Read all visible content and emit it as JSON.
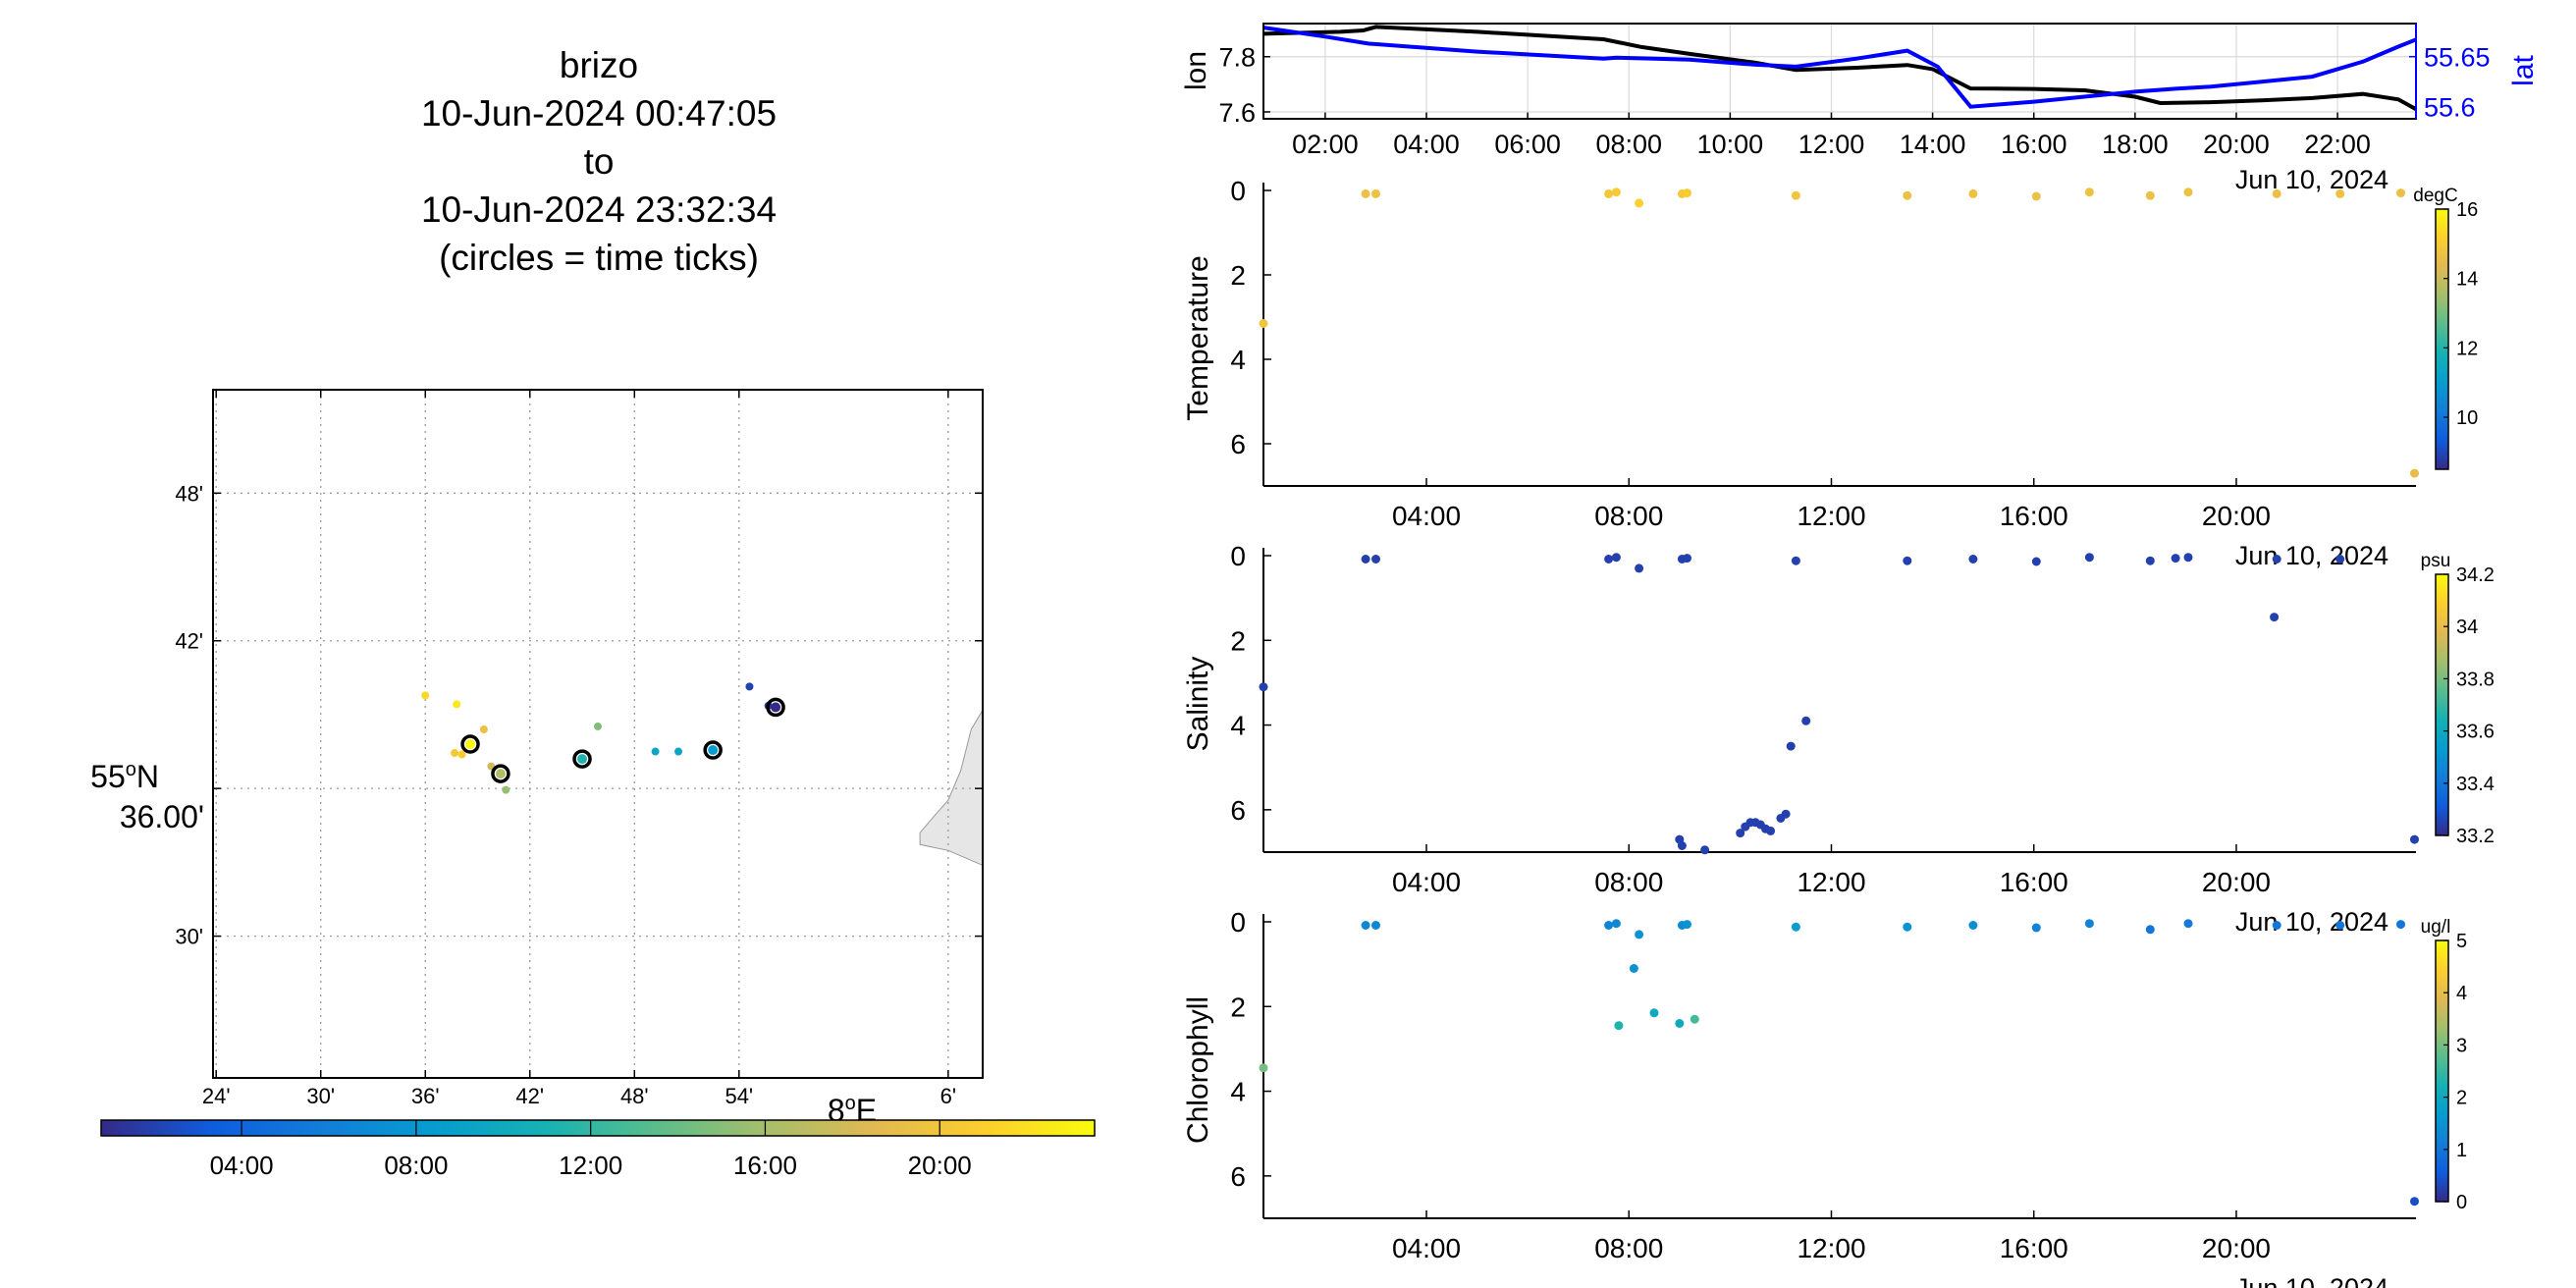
{
  "title": {
    "platform": "brizo",
    "start": "10-Jun-2024 00:47:05",
    "to": "to",
    "end": "10-Jun-2024 23:32:34",
    "note": "(circles = time ticks)"
  },
  "chart_data": [
    {
      "type": "scatter",
      "name": "track-map",
      "lon_ticks": [
        "24'",
        "30'",
        "36'",
        "42'",
        "48'",
        "54'",
        "6'"
      ],
      "lon_tick_values": [
        7.4,
        7.5,
        7.6,
        7.7,
        7.8,
        7.9,
        8.1
      ],
      "lon_degree_label": "8",
      "lon_degree_suffix": "E",
      "lat_ticks": [
        "48'",
        "42'",
        "30'"
      ],
      "lat_tick_values": [
        55.8,
        55.7,
        55.5
      ],
      "lat_degree_label": "55",
      "lat_degree_suffix": "N",
      "lat_minutes_label": "36.00'",
      "xlim": [
        7.397,
        8.133
      ],
      "ylim": [
        55.404,
        55.87
      ],
      "grid": true,
      "points": [
        {
          "lon": 7.6,
          "lat": 55.663,
          "t": 21.5,
          "tick": false
        },
        {
          "lon": 7.63,
          "lat": 55.657,
          "t": 22.5,
          "tick": false
        },
        {
          "lon": 7.643,
          "lat": 55.63,
          "t": 23.2,
          "tick": true
        },
        {
          "lon": 7.656,
          "lat": 55.64,
          "t": 19.5,
          "tick": false
        },
        {
          "lon": 7.628,
          "lat": 55.624,
          "t": 20.3,
          "tick": false
        },
        {
          "lon": 7.635,
          "lat": 55.623,
          "t": 20.8,
          "tick": false
        },
        {
          "lon": 7.663,
          "lat": 55.615,
          "t": 17.8,
          "tick": false
        },
        {
          "lon": 7.672,
          "lat": 55.61,
          "t": 16.5,
          "tick": true
        },
        {
          "lon": 7.677,
          "lat": 55.599,
          "t": 15.5,
          "tick": false
        },
        {
          "lon": 7.75,
          "lat": 55.62,
          "t": 11.3,
          "tick": true
        },
        {
          "lon": 7.765,
          "lat": 55.642,
          "t": 14.8,
          "tick": false
        },
        {
          "lon": 7.82,
          "lat": 55.625,
          "t": 9.5,
          "tick": false
        },
        {
          "lon": 7.842,
          "lat": 55.625,
          "t": 9.2,
          "tick": false
        },
        {
          "lon": 7.875,
          "lat": 55.626,
          "t": 8.5,
          "tick": true
        },
        {
          "lon": 7.91,
          "lat": 55.669,
          "t": 2.0,
          "tick": false
        },
        {
          "lon": 7.928,
          "lat": 55.656,
          "t": 1.5,
          "tick": false
        },
        {
          "lon": 7.935,
          "lat": 55.655,
          "t": 0.8,
          "tick": true
        }
      ],
      "land_polygon": [
        [
          8.133,
          55.653
        ],
        [
          8.122,
          55.64
        ],
        [
          8.112,
          55.612
        ],
        [
          8.1,
          55.592
        ],
        [
          8.085,
          55.58
        ],
        [
          8.073,
          55.57
        ],
        [
          8.073,
          55.562
        ],
        [
          8.1,
          55.558
        ],
        [
          8.133,
          55.548
        ]
      ]
    },
    {
      "type": "line",
      "name": "lon-lat-timeseries",
      "ylabel_left": "lon",
      "ylabel_right": "lat",
      "xlim": [
        0.78,
        23.55
      ],
      "ylim_left": [
        7.575,
        7.92
      ],
      "ylim_right": [
        55.588,
        55.683
      ],
      "left_ticks": [
        7.6,
        7.8
      ],
      "right_ticks": [
        55.6,
        55.65
      ],
      "x_ticks": [
        "02:00",
        "04:00",
        "06:00",
        "08:00",
        "10:00",
        "12:00",
        "14:00",
        "16:00",
        "18:00",
        "20:00",
        "22:00"
      ],
      "x_tick_values": [
        2,
        4,
        6,
        8,
        10,
        12,
        14,
        16,
        18,
        20,
        22
      ],
      "date_label": "Jun 10, 2024",
      "grid": true,
      "series": [
        {
          "axis": "left",
          "color": "#000000",
          "x": [
            0.78,
            2.3,
            2.75,
            3.0,
            5.0,
            7.5,
            8.25,
            9.2,
            10.5,
            11.3,
            12.5,
            13.5,
            14.0,
            14.75,
            16.0,
            17.0,
            18.0,
            18.5,
            19.5,
            20.5,
            21.5,
            22.5,
            23.2,
            23.55
          ],
          "y": [
            7.883,
            7.89,
            7.895,
            7.908,
            7.89,
            7.863,
            7.835,
            7.81,
            7.778,
            7.752,
            7.76,
            7.77,
            7.755,
            7.685,
            7.683,
            7.678,
            7.655,
            7.632,
            7.635,
            7.642,
            7.65,
            7.665,
            7.645,
            7.61
          ]
        },
        {
          "axis": "right",
          "color": "#0000ff",
          "x": [
            0.78,
            2.0,
            2.85,
            5.0,
            7.5,
            7.75,
            8.5,
            9.2,
            10.5,
            11.3,
            12.5,
            13.5,
            14.1,
            14.75,
            16.0,
            17.0,
            18.0,
            18.8,
            19.5,
            20.5,
            21.5,
            22.5,
            23.2,
            23.55
          ],
          "y": [
            55.679,
            55.67,
            55.663,
            55.655,
            55.648,
            55.649,
            55.648,
            55.647,
            55.642,
            55.64,
            55.648,
            55.656,
            55.64,
            55.6,
            55.605,
            55.61,
            55.615,
            55.618,
            55.62,
            55.625,
            55.63,
            55.645,
            55.66,
            55.667
          ]
        }
      ]
    },
    {
      "type": "scatter",
      "name": "temperature-panel",
      "ylabel": "Temperature",
      "units": "degC",
      "xlim": [
        0.78,
        23.55
      ],
      "ylim": [
        0,
        7
      ],
      "y_ticks": [
        0,
        2,
        4,
        6
      ],
      "x_ticks": [
        "04:00",
        "08:00",
        "12:00",
        "16:00",
        "20:00"
      ],
      "x_tick_values": [
        4,
        8,
        12,
        16,
        20
      ],
      "date_label": "Jun 10, 2024",
      "cmin": 8.5,
      "cmax": 16,
      "cbar_ticks": [
        10,
        12,
        14,
        16
      ],
      "points": [
        {
          "t": 0.78,
          "depth": 3.15,
          "v": 14.8
        },
        {
          "t": 2.8,
          "depth": 0.08,
          "v": 14.6
        },
        {
          "t": 3.0,
          "depth": 0.08,
          "v": 14.7
        },
        {
          "t": 7.6,
          "depth": 0.08,
          "v": 14.9
        },
        {
          "t": 7.75,
          "depth": 0.04,
          "v": 15.0
        },
        {
          "t": 8.2,
          "depth": 0.3,
          "v": 15.2
        },
        {
          "t": 9.05,
          "depth": 0.08,
          "v": 15.0
        },
        {
          "t": 9.15,
          "depth": 0.06,
          "v": 15.1
        },
        {
          "t": 11.3,
          "depth": 0.12,
          "v": 14.8
        },
        {
          "t": 13.5,
          "depth": 0.12,
          "v": 14.6
        },
        {
          "t": 14.8,
          "depth": 0.08,
          "v": 14.7
        },
        {
          "t": 16.05,
          "depth": 0.14,
          "v": 14.6
        },
        {
          "t": 17.1,
          "depth": 0.04,
          "v": 14.7
        },
        {
          "t": 18.3,
          "depth": 0.12,
          "v": 14.6
        },
        {
          "t": 19.05,
          "depth": 0.04,
          "v": 14.7
        },
        {
          "t": 20.8,
          "depth": 0.08,
          "v": 14.6
        },
        {
          "t": 22.05,
          "depth": 0.08,
          "v": 14.7
        },
        {
          "t": 23.25,
          "depth": 0.06,
          "v": 14.6
        },
        {
          "t": 23.52,
          "depth": 6.7,
          "v": 14.5
        }
      ]
    },
    {
      "type": "scatter",
      "name": "salinity-panel",
      "ylabel": "Salinity",
      "units": "psu",
      "xlim": [
        0.78,
        23.55
      ],
      "ylim": [
        0,
        7
      ],
      "y_ticks": [
        0,
        2,
        4,
        6
      ],
      "x_ticks": [
        "04:00",
        "08:00",
        "12:00",
        "16:00",
        "20:00"
      ],
      "x_tick_values": [
        4,
        8,
        12,
        16,
        20
      ],
      "date_label": "Jun 10, 2024",
      "cmin": 33.2,
      "cmax": 34.2,
      "cbar_ticks": [
        33.2,
        33.4,
        33.6,
        33.8,
        34,
        34.2
      ],
      "points": [
        {
          "t": 0.78,
          "depth": 3.1,
          "v": 33.25
        },
        {
          "t": 2.8,
          "depth": 0.08,
          "v": 33.25
        },
        {
          "t": 3.0,
          "depth": 0.08,
          "v": 33.25
        },
        {
          "t": 7.6,
          "depth": 0.08,
          "v": 33.25
        },
        {
          "t": 7.75,
          "depth": 0.04,
          "v": 33.25
        },
        {
          "t": 8.2,
          "depth": 0.3,
          "v": 33.25
        },
        {
          "t": 9.05,
          "depth": 0.08,
          "v": 33.25
        },
        {
          "t": 9.15,
          "depth": 0.06,
          "v": 33.25
        },
        {
          "t": 11.3,
          "depth": 0.12,
          "v": 33.25
        },
        {
          "t": 13.5,
          "depth": 0.12,
          "v": 33.25
        },
        {
          "t": 14.8,
          "depth": 0.08,
          "v": 33.25
        },
        {
          "t": 16.05,
          "depth": 0.14,
          "v": 33.25
        },
        {
          "t": 17.1,
          "depth": 0.04,
          "v": 33.25
        },
        {
          "t": 18.3,
          "depth": 0.12,
          "v": 33.25
        },
        {
          "t": 18.8,
          "depth": 0.06,
          "v": 33.25
        },
        {
          "t": 19.05,
          "depth": 0.04,
          "v": 33.25
        },
        {
          "t": 20.8,
          "depth": 0.08,
          "v": 33.25
        },
        {
          "t": 22.05,
          "depth": 0.08,
          "v": 33.25
        },
        {
          "t": 20.75,
          "depth": 1.45,
          "v": 33.25
        },
        {
          "t": 9.0,
          "depth": 6.7,
          "v": 33.25
        },
        {
          "t": 9.05,
          "depth": 6.85,
          "v": 33.25
        },
        {
          "t": 9.5,
          "depth": 6.95,
          "v": 33.25
        },
        {
          "t": 10.2,
          "depth": 6.55,
          "v": 33.25
        },
        {
          "t": 10.3,
          "depth": 6.4,
          "v": 33.25
        },
        {
          "t": 10.4,
          "depth": 6.3,
          "v": 33.25
        },
        {
          "t": 10.5,
          "depth": 6.3,
          "v": 33.25
        },
        {
          "t": 10.6,
          "depth": 6.35,
          "v": 33.25
        },
        {
          "t": 10.7,
          "depth": 6.45,
          "v": 33.25
        },
        {
          "t": 10.8,
          "depth": 6.5,
          "v": 33.25
        },
        {
          "t": 11.0,
          "depth": 6.2,
          "v": 33.25
        },
        {
          "t": 11.1,
          "depth": 6.1,
          "v": 33.25
        },
        {
          "t": 11.2,
          "depth": 4.5,
          "v": 33.25
        },
        {
          "t": 11.5,
          "depth": 3.9,
          "v": 33.25
        },
        {
          "t": 23.52,
          "depth": 6.7,
          "v": 33.25
        }
      ]
    },
    {
      "type": "scatter",
      "name": "chlorophyll-panel",
      "ylabel": "Chlorophyll",
      "units": "ug/l",
      "xlim": [
        0.78,
        23.55
      ],
      "ylim": [
        0,
        7
      ],
      "y_ticks": [
        0,
        2,
        4,
        6
      ],
      "x_ticks": [
        "04:00",
        "08:00",
        "12:00",
        "16:00",
        "20:00"
      ],
      "x_tick_values": [
        4,
        8,
        12,
        16,
        20
      ],
      "date_label": "Jun 10, 2024",
      "cmin": 0,
      "cmax": 5,
      "cbar_ticks": [
        0,
        1,
        2,
        3,
        4,
        5
      ],
      "points": [
        {
          "t": 0.78,
          "depth": 3.45,
          "v": 3.0
        },
        {
          "t": 2.8,
          "depth": 0.08,
          "v": 1.3
        },
        {
          "t": 3.0,
          "depth": 0.08,
          "v": 1.3
        },
        {
          "t": 7.6,
          "depth": 0.08,
          "v": 1.2
        },
        {
          "t": 7.75,
          "depth": 0.04,
          "v": 1.3
        },
        {
          "t": 8.2,
          "depth": 0.3,
          "v": 1.5
        },
        {
          "t": 9.05,
          "depth": 0.08,
          "v": 1.4
        },
        {
          "t": 9.15,
          "depth": 0.06,
          "v": 1.5
        },
        {
          "t": 11.3,
          "depth": 0.12,
          "v": 1.7
        },
        {
          "t": 13.5,
          "depth": 0.12,
          "v": 1.5
        },
        {
          "t": 14.8,
          "depth": 0.08,
          "v": 1.4
        },
        {
          "t": 16.05,
          "depth": 0.14,
          "v": 1.2
        },
        {
          "t": 17.1,
          "depth": 0.04,
          "v": 1.2
        },
        {
          "t": 18.3,
          "depth": 0.18,
          "v": 1.0
        },
        {
          "t": 19.05,
          "depth": 0.04,
          "v": 1.1
        },
        {
          "t": 20.8,
          "depth": 0.08,
          "v": 1.0
        },
        {
          "t": 22.05,
          "depth": 0.08,
          "v": 1.0
        },
        {
          "t": 23.25,
          "depth": 0.06,
          "v": 1.0
        },
        {
          "t": 8.1,
          "depth": 1.1,
          "v": 1.5
        },
        {
          "t": 8.5,
          "depth": 2.15,
          "v": 2.0
        },
        {
          "t": 7.8,
          "depth": 2.45,
          "v": 2.3
        },
        {
          "t": 9.0,
          "depth": 2.4,
          "v": 2.0
        },
        {
          "t": 9.3,
          "depth": 2.3,
          "v": 2.6
        },
        {
          "t": 23.52,
          "depth": 6.6,
          "v": 0.4
        }
      ]
    },
    {
      "type": "colorbar",
      "name": "time-colorbar",
      "ticks": [
        "04:00",
        "08:00",
        "12:00",
        "16:00",
        "20:00"
      ],
      "tick_values": [
        4,
        8,
        12,
        16,
        20
      ],
      "min": 0.78,
      "max": 23.55
    }
  ]
}
